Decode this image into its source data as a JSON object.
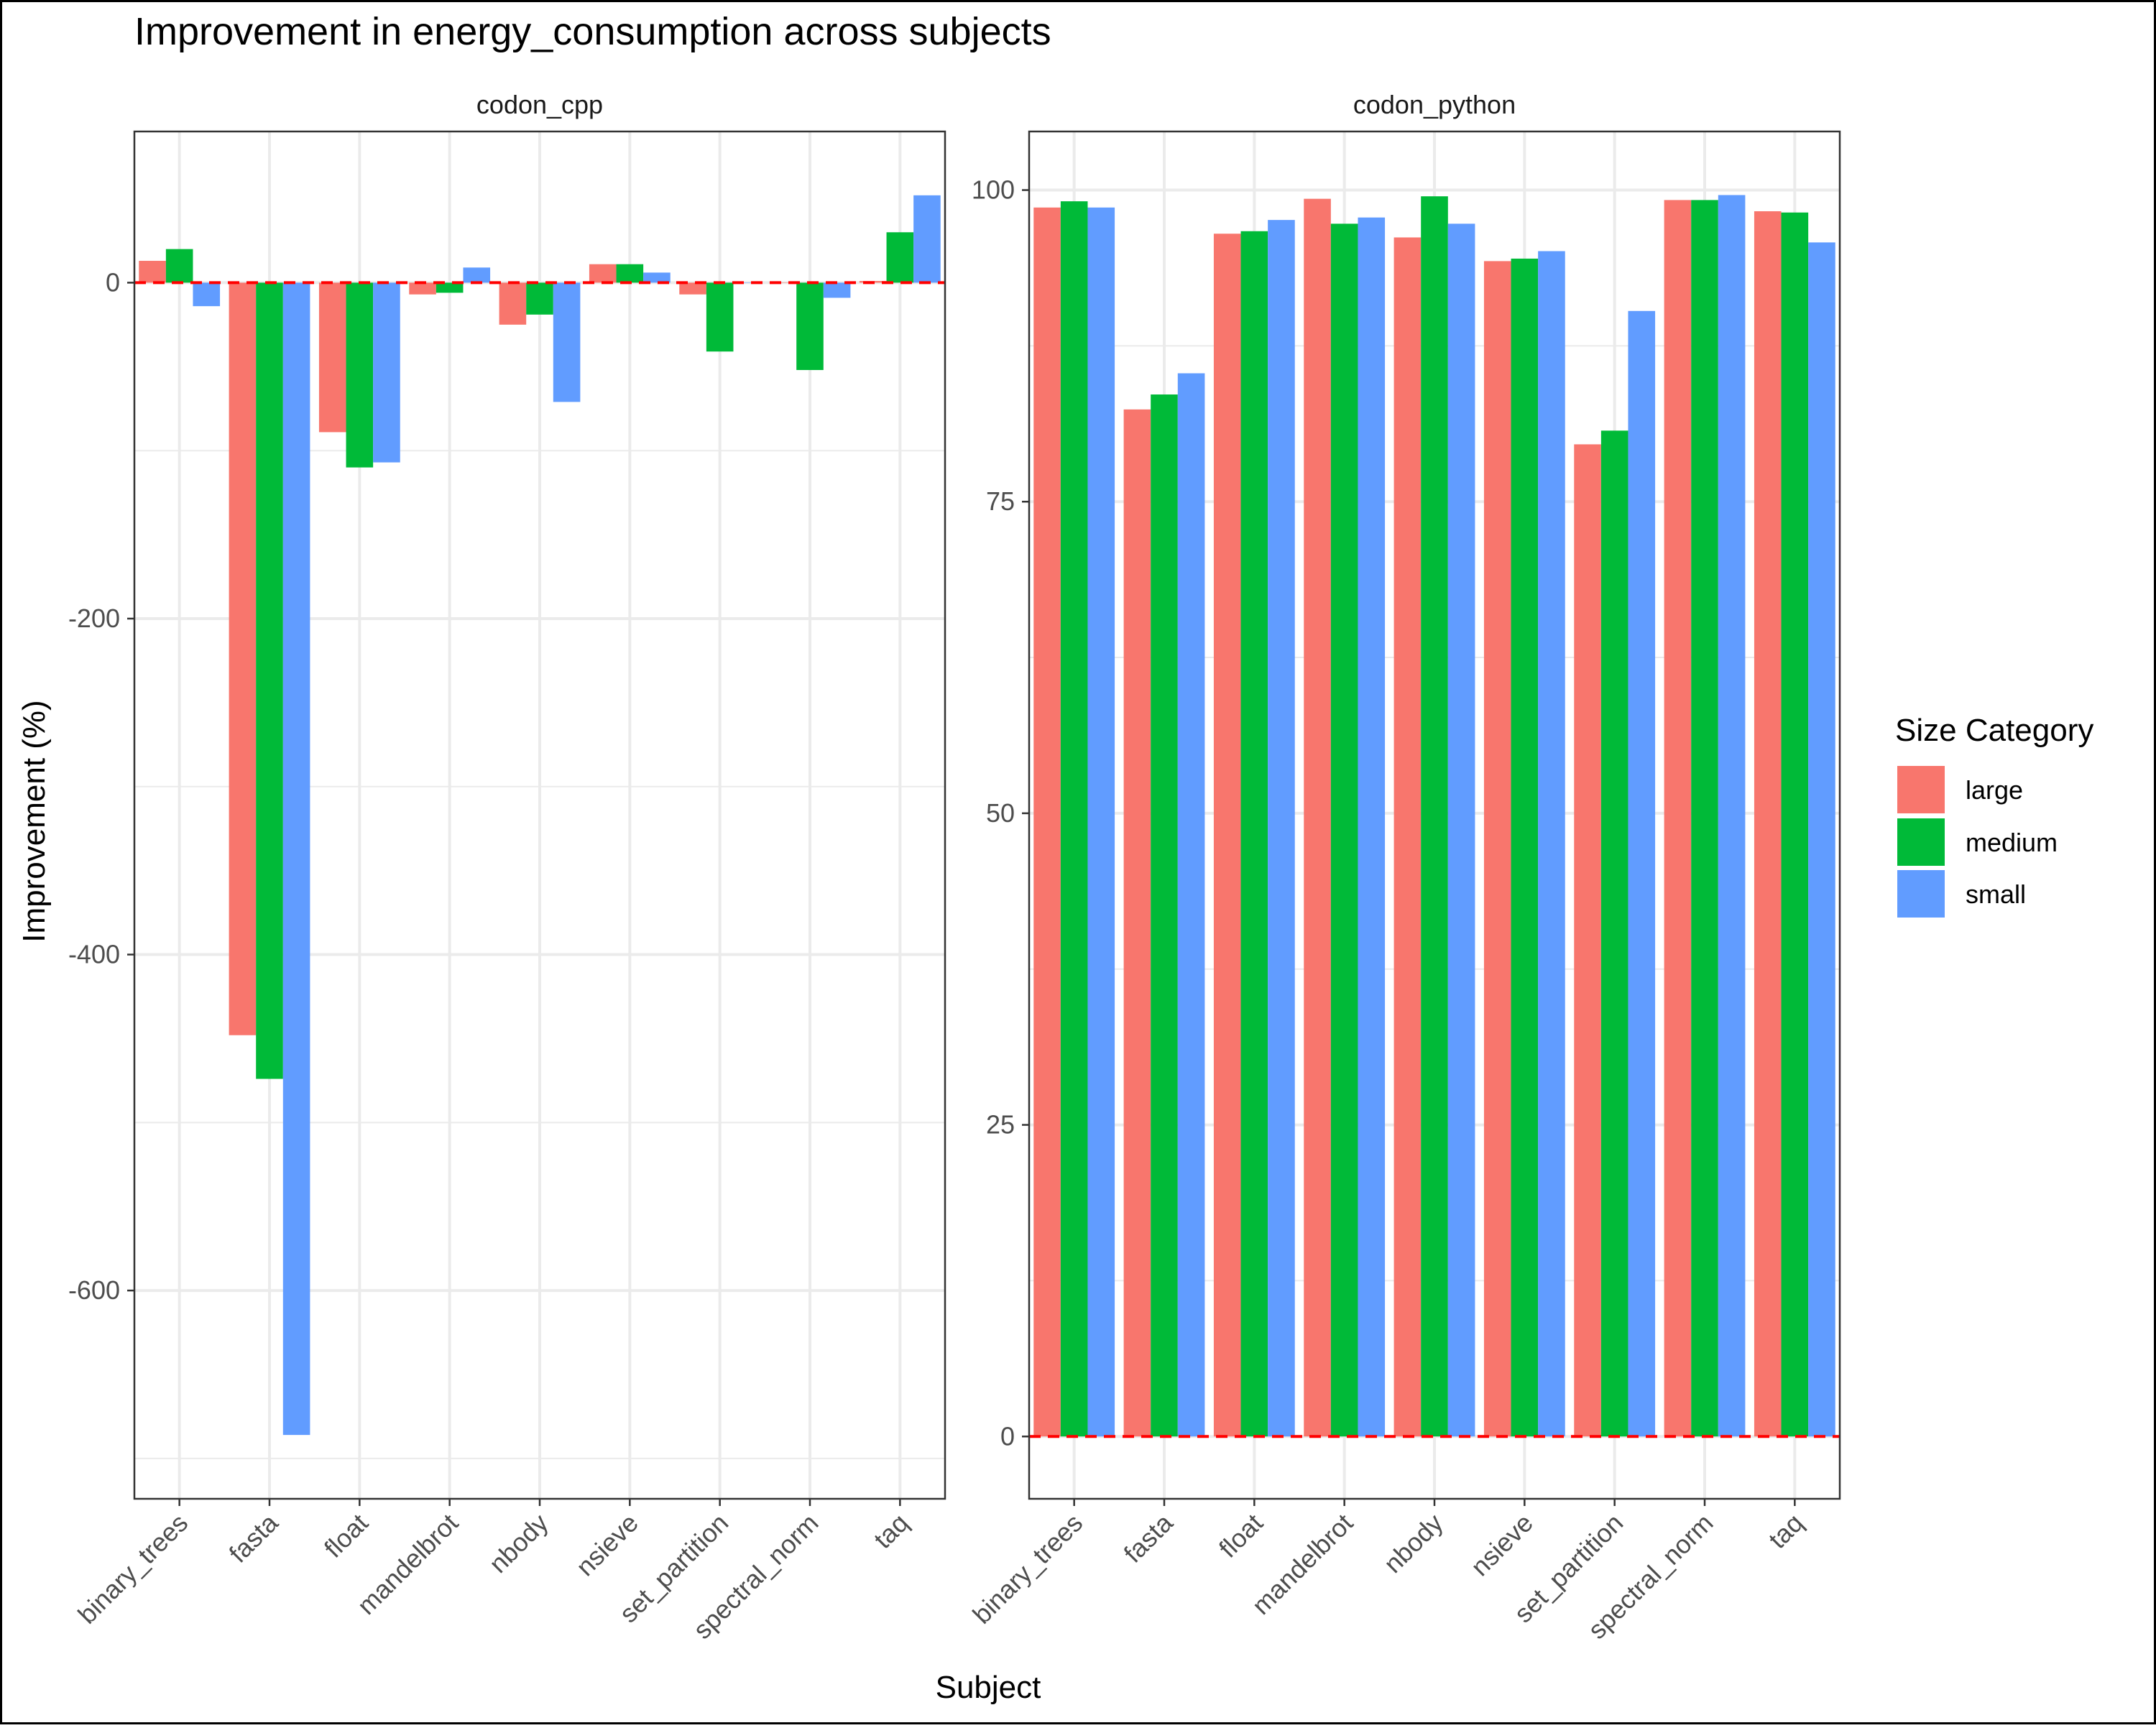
{
  "title": "Improvement in energy_consumption across subjects",
  "x_axis_title": "Subject",
  "y_axis_title": "Improvement (%)",
  "legend": {
    "title": "Size Category",
    "entries": [
      "large",
      "medium",
      "small"
    ]
  },
  "colors": {
    "large": "#F8766D",
    "medium": "#00BA38",
    "small": "#619CFF",
    "reference_line": "#FF0000",
    "grid": "#EBEBEB",
    "panel_border": "#333333"
  },
  "chart_data": [
    {
      "type": "bar",
      "panel": "codon_cpp",
      "categories": [
        "binary_trees",
        "fasta",
        "float",
        "mandelbrot",
        "nbody",
        "nsieve",
        "set_partition",
        "spectral_norm",
        "taq"
      ],
      "series": [
        {
          "name": "large",
          "values": [
            13,
            -448,
            -89,
            -7,
            -25,
            11,
            -7,
            0,
            1
          ]
        },
        {
          "name": "medium",
          "values": [
            20,
            -474,
            -110,
            -6,
            -19,
            11,
            -41,
            -52,
            30
          ]
        },
        {
          "name": "small",
          "values": [
            -14,
            -686,
            -107,
            9,
            -71,
            6,
            0,
            -9,
            52
          ]
        }
      ],
      "ylim": [
        -724,
        90
      ],
      "yticks": [
        0,
        -200,
        -400,
        -600
      ],
      "reference_line_y": 0,
      "xlabel": "Subject",
      "ylabel": "Improvement (%)"
    },
    {
      "type": "bar",
      "panel": "codon_python",
      "categories": [
        "binary_trees",
        "fasta",
        "float",
        "mandelbrot",
        "nbody",
        "nsieve",
        "set_partition",
        "spectral_norm",
        "taq"
      ],
      "series": [
        {
          "name": "large",
          "values": [
            98.6,
            82.4,
            96.5,
            99.3,
            96.2,
            94.3,
            79.6,
            99.2,
            98.3
          ]
        },
        {
          "name": "medium",
          "values": [
            99.1,
            83.6,
            96.7,
            97.3,
            99.5,
            94.5,
            80.7,
            99.2,
            98.2
          ]
        },
        {
          "name": "small",
          "values": [
            98.6,
            85.3,
            97.6,
            97.8,
            97.3,
            95.1,
            90.3,
            99.6,
            95.8
          ]
        }
      ],
      "ylim": [
        -5,
        104.7
      ],
      "yticks": [
        0,
        25,
        50,
        75,
        100
      ],
      "reference_line_y": 0,
      "xlabel": "Subject",
      "ylabel": "Improvement (%)"
    }
  ]
}
